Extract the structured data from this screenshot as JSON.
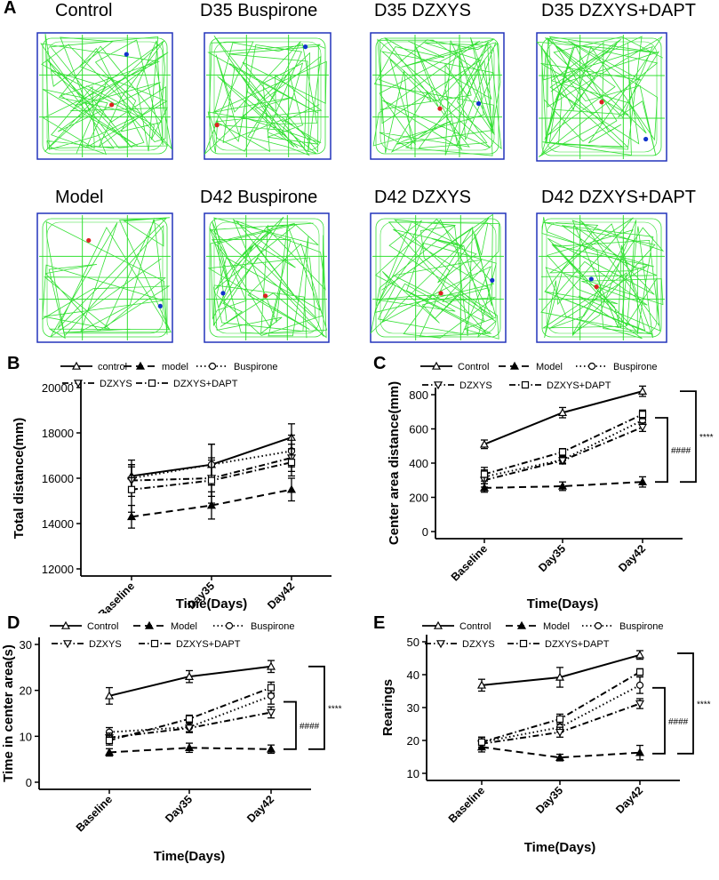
{
  "panels": {
    "A": "A",
    "B": "B",
    "C": "C",
    "D": "D",
    "E": "E"
  },
  "arenas": [
    {
      "title": "Control"
    },
    {
      "title": "D35 Buspirone"
    },
    {
      "title": "D35 DZXYS"
    },
    {
      "title": "D35 DZXYS+DAPT"
    },
    {
      "title": "Model"
    },
    {
      "title": "D42 Buspirone"
    },
    {
      "title": "D42 DZXYS"
    },
    {
      "title": "D42 DZXYS+DAPT"
    }
  ],
  "colors": {
    "track": "#33e033",
    "arena_border": "#2233bb",
    "start_dot": "#dd2222",
    "end_dot": "#1133cc",
    "axis": "#000000"
  },
  "chart_data": [
    {
      "id": "B",
      "type": "line",
      "categories": [
        "Baseline",
        "Day35",
        "Day42"
      ],
      "xlabel": "Time(Days)",
      "ylabel": "Total distance(mm)",
      "ylim": [
        12000,
        20000
      ],
      "yticks": [
        12000,
        14000,
        16000,
        18000,
        20000
      ],
      "series": [
        {
          "name": "control",
          "style": "solid",
          "marker": "triangle-up",
          "values": [
            16100,
            16600,
            17800
          ],
          "errors": [
            700,
            900,
            600
          ]
        },
        {
          "name": "model",
          "style": "dashed",
          "marker": "triangle-up-filled",
          "values": [
            14300,
            14800,
            15500
          ],
          "errors": [
            500,
            600,
            500
          ]
        },
        {
          "name": "Buspirone",
          "style": "dotted",
          "marker": "circle",
          "values": [
            16000,
            16600,
            17200
          ],
          "errors": [
            600,
            900,
            700
          ]
        },
        {
          "name": "DZXYS",
          "style": "dashdot",
          "marker": "triangle-down",
          "values": [
            15900,
            16000,
            16900
          ],
          "errors": [
            700,
            800,
            600
          ]
        },
        {
          "name": "DZXYS+DAPT",
          "style": "dashdot",
          "marker": "square",
          "values": [
            15500,
            15900,
            16700
          ],
          "errors": [
            1000,
            1000,
            600
          ]
        }
      ],
      "annotations": []
    },
    {
      "id": "C",
      "type": "line",
      "categories": [
        "Baseline",
        "Day35",
        "Day42"
      ],
      "xlabel": "Time(Days)",
      "ylabel": "Center area distance(mm)",
      "ylim": [
        0,
        800
      ],
      "yticks": [
        0,
        200,
        400,
        600,
        800
      ],
      "series": [
        {
          "name": "Control",
          "style": "solid",
          "marker": "triangle-up",
          "values": [
            510,
            695,
            820
          ],
          "errors": [
            25,
            30,
            30
          ]
        },
        {
          "name": "Model",
          "style": "dashed",
          "marker": "triangle-up-filled",
          "values": [
            255,
            265,
            290
          ],
          "errors": [
            25,
            25,
            30
          ]
        },
        {
          "name": "Buspirone",
          "style": "dotted",
          "marker": "circle",
          "values": [
            320,
            420,
            650
          ],
          "errors": [
            40,
            20,
            25
          ]
        },
        {
          "name": "DZXYS",
          "style": "dashdot",
          "marker": "triangle-down",
          "values": [
            300,
            415,
            610
          ],
          "errors": [
            40,
            20,
            25
          ]
        },
        {
          "name": "DZXYS+DAPT",
          "style": "dashdot",
          "marker": "square",
          "values": [
            335,
            465,
            685
          ],
          "errors": [
            40,
            20,
            25
          ]
        }
      ],
      "annotations": [
        {
          "label": "####",
          "from": 290,
          "to": 665
        },
        {
          "label": "****",
          "from": 290,
          "to": 820
        }
      ]
    },
    {
      "id": "D",
      "type": "line",
      "categories": [
        "Baseline",
        "Day35",
        "Day42"
      ],
      "xlabel": "Time(Days)",
      "ylabel": "Time in center area(s)",
      "ylim": [
        0,
        30
      ],
      "yticks": [
        0,
        10,
        20,
        30
      ],
      "series": [
        {
          "name": "Control",
          "style": "solid",
          "marker": "triangle-up",
          "values": [
            18.8,
            23.0,
            25.2
          ],
          "errors": [
            1.8,
            1.3,
            1.3
          ]
        },
        {
          "name": "Model",
          "style": "dashed",
          "marker": "triangle-up-filled",
          "values": [
            6.5,
            7.5,
            7.2
          ],
          "errors": [
            0.8,
            1.0,
            0.9
          ]
        },
        {
          "name": "Buspirone",
          "style": "dotted",
          "marker": "circle",
          "values": [
            10.9,
            12.0,
            18.8
          ],
          "errors": [
            1.0,
            1.0,
            1.8
          ]
        },
        {
          "name": "DZXYS",
          "style": "dashdot",
          "marker": "triangle-down",
          "values": [
            9.7,
            11.8,
            15.2
          ],
          "errors": [
            1.0,
            1.0,
            1.2
          ]
        },
        {
          "name": "DZXYS+DAPT",
          "style": "dashdot",
          "marker": "square",
          "values": [
            9.1,
            13.8,
            20.6
          ],
          "errors": [
            1.0,
            0.8,
            1.2
          ]
        }
      ],
      "annotations": [
        {
          "label": "####",
          "from": 7.2,
          "to": 17.5
        },
        {
          "label": "****",
          "from": 7.2,
          "to": 25.2
        }
      ]
    },
    {
      "id": "E",
      "type": "line",
      "categories": [
        "Baseline",
        "Day35",
        "Day42"
      ],
      "xlabel": "Time(Days)",
      "ylabel": "Rearings",
      "ylim": [
        10,
        50
      ],
      "yticks": [
        10,
        20,
        30,
        40,
        50
      ],
      "series": [
        {
          "name": "Control",
          "style": "solid",
          "marker": "triangle-up",
          "values": [
            36.8,
            39.2,
            46.0
          ],
          "errors": [
            1.8,
            3.0,
            1.3
          ]
        },
        {
          "name": "Model",
          "style": "dashed",
          "marker": "triangle-up-filled",
          "values": [
            18.0,
            14.8,
            16.3
          ],
          "errors": [
            1.5,
            1.0,
            2.2
          ]
        },
        {
          "name": "Buspirone",
          "style": "dotted",
          "marker": "circle",
          "values": [
            19.5,
            24.0,
            36.8
          ],
          "errors": [
            1.5,
            1.5,
            2.5
          ]
        },
        {
          "name": "DZXYS",
          "style": "dashdot",
          "marker": "triangle-down",
          "values": [
            19.0,
            22.5,
            31.2
          ],
          "errors": [
            1.5,
            1.5,
            1.5
          ]
        },
        {
          "name": "DZXYS+DAPT",
          "style": "dashdot",
          "marker": "square",
          "values": [
            19.5,
            26.5,
            40.8
          ],
          "errors": [
            1.5,
            1.5,
            1.0
          ]
        }
      ],
      "annotations": [
        {
          "label": "####",
          "from": 16.0,
          "to": 36.0
        },
        {
          "label": "****",
          "from": 16.0,
          "to": 46.5
        }
      ]
    }
  ]
}
